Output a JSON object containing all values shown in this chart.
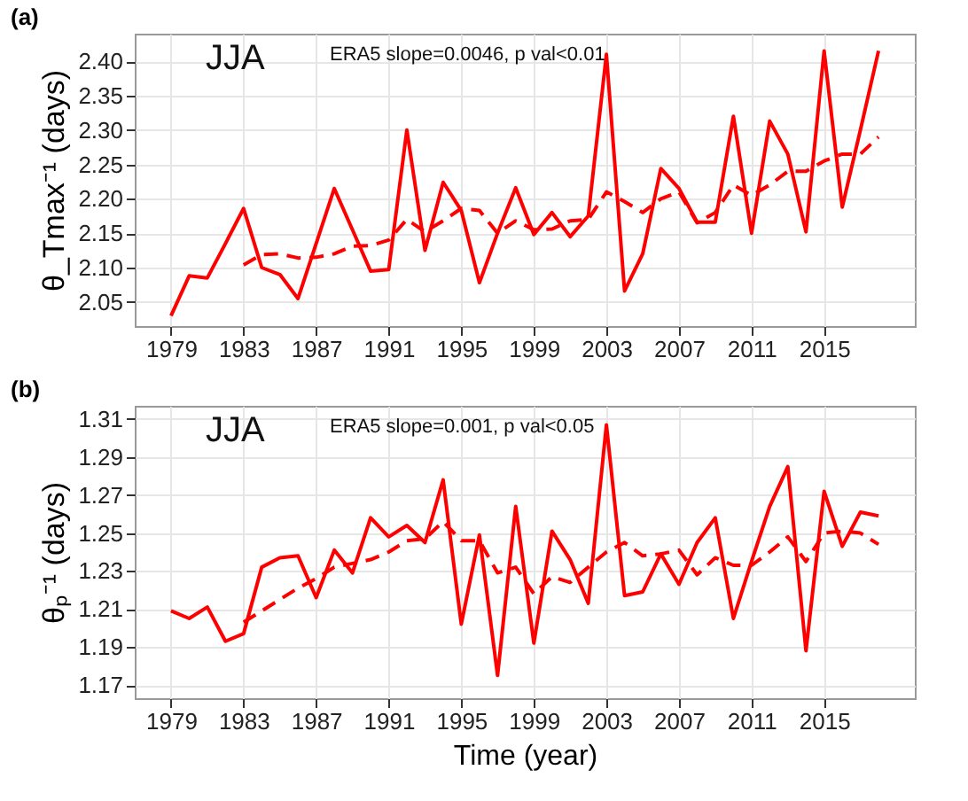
{
  "chart_data": [
    {
      "type": "line",
      "title": "(a)",
      "ylabel": "θ_Tmax⁻¹ (days)",
      "annotations": [
        "JJA",
        "ERA5 slope=0.0046, p val<0.01"
      ],
      "x": [
        1979,
        1980,
        1981,
        1982,
        1983,
        1984,
        1985,
        1986,
        1987,
        1988,
        1989,
        1990,
        1991,
        1992,
        1993,
        1994,
        1995,
        1996,
        1997,
        1998,
        1999,
        2000,
        2001,
        2002,
        2003,
        2004,
        2005,
        2006,
        2007,
        2008,
        2009,
        2010,
        2011,
        2012,
        2013,
        2014,
        2015,
        2016,
        2017,
        2018
      ],
      "series": [
        {
          "color": "#ff0000",
          "line_style": "solid",
          "values": [
            2.03,
            2.088,
            2.085,
            2.135,
            2.186,
            2.1,
            2.09,
            2.055,
            2.135,
            2.215,
            2.155,
            2.095,
            2.097,
            2.3,
            2.125,
            2.224,
            2.183,
            2.078,
            2.15,
            2.216,
            2.148,
            2.18,
            2.145,
            2.175,
            2.41,
            2.066,
            2.12,
            2.244,
            2.215,
            2.166,
            2.166,
            2.32,
            2.15,
            2.313,
            2.265,
            2.152,
            2.415,
            2.188,
            2.3,
            2.415
          ]
        },
        {
          "color": "#ff0000",
          "line_style": "dashed",
          "x": [
            1983,
            1984,
            1985,
            1986,
            1987,
            1988,
            1989,
            1990,
            1991,
            1992,
            1993,
            1994,
            1995,
            1996,
            1997,
            1998,
            1999,
            2000,
            2001,
            2002,
            2003,
            2004,
            2005,
            2006,
            2007,
            2008,
            2009,
            2010,
            2011,
            2012,
            2013,
            2014,
            2015,
            2016,
            2017,
            2018
          ],
          "values": [
            2.104,
            2.119,
            2.12,
            2.114,
            2.115,
            2.12,
            2.131,
            2.132,
            2.14,
            2.17,
            2.152,
            2.168,
            2.186,
            2.183,
            2.15,
            2.168,
            2.155,
            2.156,
            2.168,
            2.17,
            2.21,
            2.196,
            2.18,
            2.2,
            2.21,
            2.165,
            2.18,
            2.22,
            2.205,
            2.22,
            2.24,
            2.24,
            2.255,
            2.265,
            2.265,
            2.29
          ]
        }
      ],
      "xlim": [
        1977,
        2020
      ],
      "xticks": [
        1979,
        1983,
        1987,
        1991,
        1995,
        1999,
        2003,
        2007,
        2011,
        2015
      ],
      "ylim": [
        2.015,
        2.44
      ],
      "yticks": [
        2.05,
        {
          "value": 2.1,
          "label": "2.10"
        },
        2.15,
        {
          "value": 2.2,
          "label": "2.20"
        },
        2.25,
        {
          "value": 2.3,
          "label": "2.30"
        },
        2.35,
        {
          "value": 2.4,
          "label": "2.40"
        }
      ],
      "grid": true,
      "legend": false,
      "marker": "none"
    },
    {
      "type": "line",
      "title": "(b)",
      "xlabel": "Time (year)",
      "ylabel": "θₚ⁻¹ (days)",
      "annotations": [
        "JJA",
        "ERA5 slope=0.001, p val<0.05"
      ],
      "x": [
        1979,
        1980,
        1981,
        1982,
        1983,
        1984,
        1985,
        1986,
        1987,
        1988,
        1989,
        1990,
        1991,
        1992,
        1993,
        1994,
        1995,
        1996,
        1997,
        1998,
        1999,
        2000,
        2001,
        2002,
        2003,
        2004,
        2005,
        2006,
        2007,
        2008,
        2009,
        2010,
        2011,
        2012,
        2013,
        2014,
        2015,
        2016,
        2017,
        2018
      ],
      "series": [
        {
          "color": "#ff0000",
          "line_style": "solid",
          "values": [
            1.209,
            1.205,
            1.211,
            1.193,
            1.197,
            1.232,
            1.237,
            1.238,
            1.216,
            1.241,
            1.229,
            1.258,
            1.248,
            1.254,
            1.245,
            1.278,
            1.202,
            1.249,
            1.175,
            1.264,
            1.192,
            1.251,
            1.236,
            1.213,
            1.307,
            1.217,
            1.219,
            1.239,
            1.223,
            1.245,
            1.258,
            1.205,
            1.235,
            1.264,
            1.285,
            1.188,
            1.272,
            1.243,
            1.261,
            1.259
          ]
        },
        {
          "color": "#ff0000",
          "line_style": "dashed",
          "x": [
            1983,
            1984,
            1985,
            1986,
            1987,
            1988,
            1989,
            1990,
            1991,
            1992,
            1993,
            1994,
            1995,
            1996,
            1997,
            1998,
            1999,
            2000,
            2001,
            2002,
            2003,
            2004,
            2005,
            2006,
            2007,
            2008,
            2009,
            2010,
            2011,
            2012,
            2013,
            2014,
            2015,
            2016,
            2017,
            2018
          ],
          "values": [
            1.203,
            1.209,
            1.215,
            1.221,
            1.226,
            1.232,
            1.234,
            1.236,
            1.24,
            1.246,
            1.247,
            1.256,
            1.246,
            1.246,
            1.229,
            1.232,
            1.218,
            1.227,
            1.224,
            1.232,
            1.24,
            1.245,
            1.238,
            1.239,
            1.241,
            1.228,
            1.237,
            1.233,
            1.233,
            1.24,
            1.248,
            1.235,
            1.25,
            1.251,
            1.25,
            1.244
          ]
        }
      ],
      "xlim": [
        1977,
        2020
      ],
      "xticks": [
        1979,
        1983,
        1987,
        1991,
        1995,
        1999,
        2003,
        2007,
        2011,
        2015
      ],
      "ylim": [
        1.163,
        1.317
      ],
      "yticks": [
        1.17,
        1.19,
        1.21,
        1.23,
        1.25,
        1.27,
        1.29,
        1.31
      ],
      "grid": true,
      "legend": false,
      "marker": "none"
    }
  ]
}
